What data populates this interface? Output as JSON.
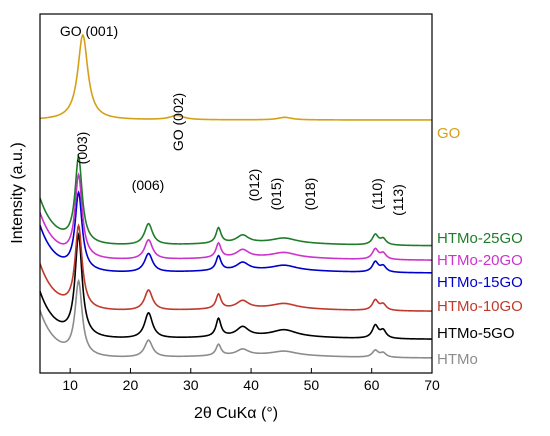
{
  "chart_data": {
    "type": "line",
    "title": "",
    "xlabel": "2θ CuKα (°)",
    "ylabel": "Intensity (a.u.)",
    "xlim": [
      5,
      70
    ],
    "xticks": [
      10,
      20,
      30,
      40,
      50,
      60,
      70
    ],
    "grid": false,
    "series": [
      {
        "name": "HTMo",
        "color": "#8c8c8c",
        "offset": 0,
        "peaks": [
          [
            11.4,
            86,
            0.7
          ],
          [
            23.0,
            20,
            0.8
          ],
          [
            34.6,
            13,
            0.5
          ],
          [
            38.6,
            7,
            1.2
          ],
          [
            45.5,
            5,
            2.5
          ],
          [
            60.6,
            8,
            0.6
          ],
          [
            61.9,
            5,
            0.6
          ]
        ]
      },
      {
        "name": "HTMo-5GO",
        "color": "#000000",
        "offset": 22,
        "peaks": [
          [
            11.4,
            118,
            0.7
          ],
          [
            23.0,
            30,
            0.8
          ],
          [
            34.6,
            21,
            0.5
          ],
          [
            38.6,
            11,
            1.2
          ],
          [
            45.5,
            8,
            2.5
          ],
          [
            60.6,
            15,
            0.6
          ],
          [
            61.9,
            9,
            0.6
          ]
        ]
      },
      {
        "name": "HTMo-10GO",
        "color": "#c0392b",
        "offset": 55,
        "peaks": [
          [
            11.4,
            96,
            0.7
          ],
          [
            23.0,
            24,
            0.8
          ],
          [
            34.6,
            17,
            0.5
          ],
          [
            38.6,
            9,
            1.2
          ],
          [
            45.5,
            6,
            2.5
          ],
          [
            60.6,
            12,
            0.6
          ],
          [
            61.9,
            7,
            0.6
          ]
        ]
      },
      {
        "name": "HTMo-15GO",
        "color": "#0000cc",
        "offset": 100,
        "peaks": [
          [
            11.4,
            90,
            0.7
          ],
          [
            23.0,
            22,
            0.8
          ],
          [
            34.6,
            17,
            0.5
          ],
          [
            38.6,
            9,
            1.2
          ],
          [
            45.5,
            6,
            2.5
          ],
          [
            60.6,
            12,
            0.6
          ],
          [
            61.9,
            7,
            0.6
          ]
        ]
      },
      {
        "name": "HTMo-20GO",
        "color": "#cc33cc",
        "offset": 115,
        "peaks": [
          [
            11.4,
            96,
            0.7
          ],
          [
            23.0,
            23,
            0.8
          ],
          [
            34.6,
            17,
            0.5
          ],
          [
            38.6,
            9,
            1.2
          ],
          [
            45.5,
            6,
            2.5
          ],
          [
            60.6,
            12,
            0.6
          ],
          [
            61.9,
            7,
            0.6
          ]
        ]
      },
      {
        "name": "HTMo-25GO",
        "color": "#1e7d2a",
        "offset": 132,
        "peaks": [
          [
            11.4,
            100,
            0.7
          ],
          [
            23.0,
            25,
            0.8
          ],
          [
            34.6,
            18,
            0.5
          ],
          [
            38.6,
            9,
            1.2
          ],
          [
            45.5,
            6,
            2.5
          ],
          [
            60.6,
            12,
            0.6
          ],
          [
            61.9,
            7,
            0.6
          ]
        ]
      },
      {
        "name": "GO",
        "color": "#d4a017",
        "offset": 280,
        "peaks": [
          [
            12.1,
            100,
            1.0
          ],
          [
            27.7,
            5,
            1.4
          ],
          [
            45.6,
            3,
            1.4
          ]
        ]
      }
    ],
    "annotations": [
      {
        "text": "GO (001)",
        "x": 12.1,
        "rotate": false
      },
      {
        "text": "GO (002)",
        "x": 27.7,
        "rotate": true
      },
      {
        "text": "(003)",
        "x": 11.4,
        "rotate": true
      },
      {
        "text": "(006)",
        "x": 23.0,
        "rotate": false
      },
      {
        "text": "(012)",
        "x": 34.6,
        "rotate": true
      },
      {
        "text": "(015)",
        "x": 38.6,
        "rotate": true
      },
      {
        "text": "(018)",
        "x": 45.5,
        "rotate": true
      },
      {
        "text": "(110)",
        "x": 60.6,
        "rotate": true
      },
      {
        "text": "(113)",
        "x": 61.9,
        "rotate": true
      }
    ]
  }
}
